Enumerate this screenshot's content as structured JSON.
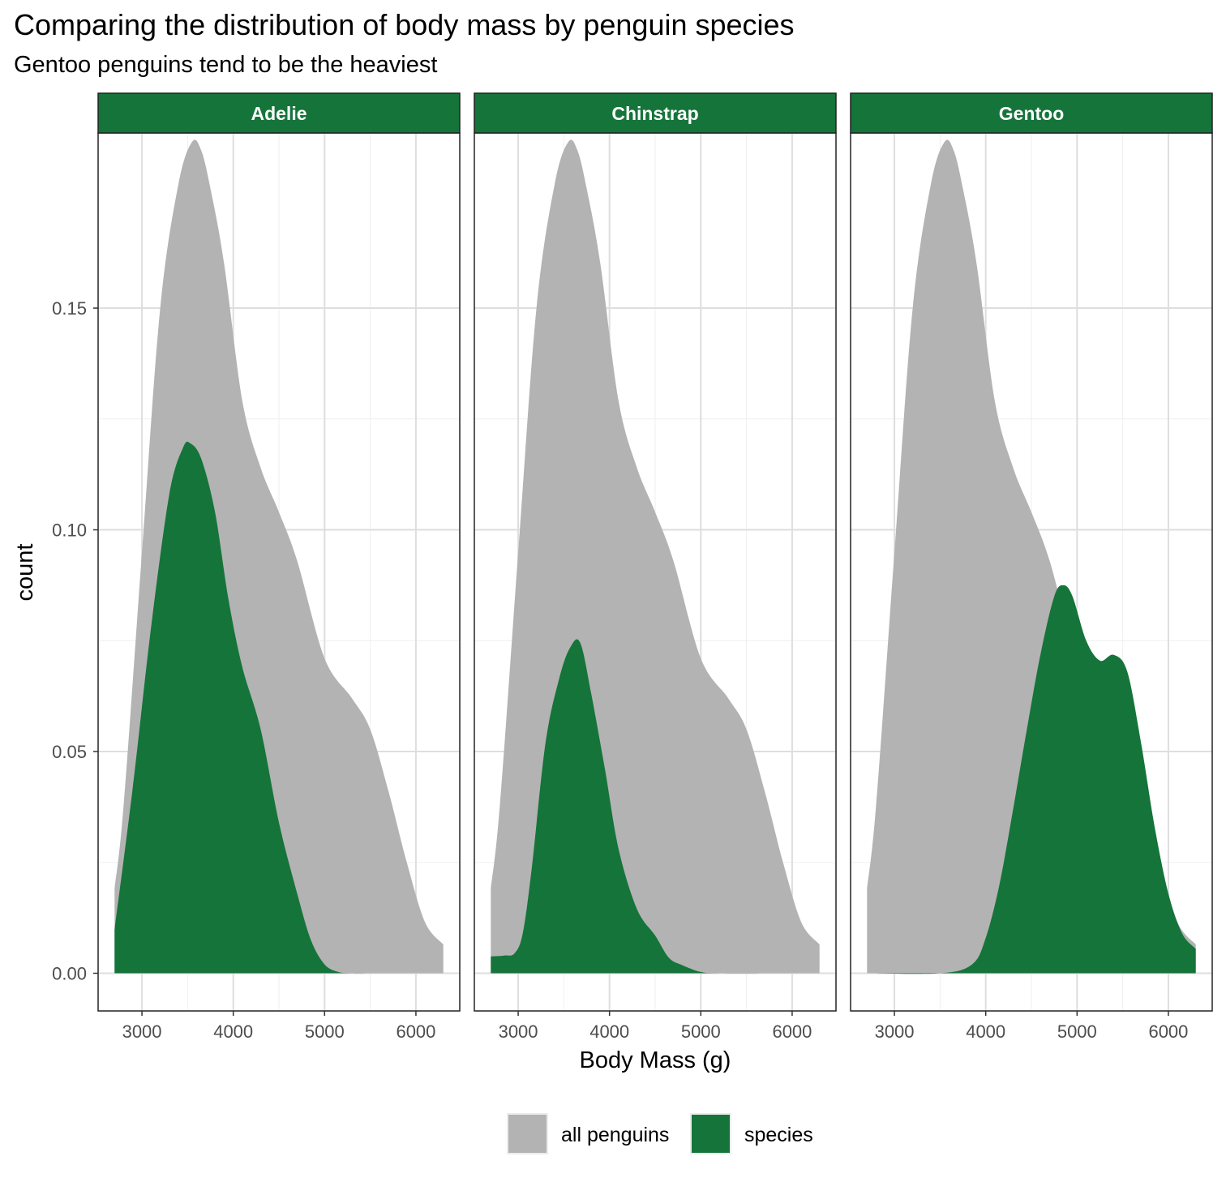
{
  "title": "Comparing the distribution of body mass by penguin species",
  "subtitle": "Gentoo penguins tend to be the heaviest",
  "colors": {
    "all": "#b3b3b3",
    "species": "#15743a",
    "grid": "#dedede",
    "strip_bg": "#15743a",
    "strip_text": "#ffffff"
  },
  "chart_data": {
    "type": "area",
    "facets": [
      "Adelie",
      "Chinstrap",
      "Gentoo"
    ],
    "xlabel": "Body Mass (g)",
    "ylabel": "count",
    "xlim": [
      2520,
      6480
    ],
    "ylim": [
      -0.0085,
      0.1895
    ],
    "x_ticks": [
      3000,
      4000,
      5000,
      6000
    ],
    "y_ticks": [
      0.0,
      0.05,
      0.1,
      0.15
    ],
    "y_tick_labels": [
      "0.00",
      "0.05",
      "0.10",
      "0.15"
    ],
    "grid": true,
    "legend": {
      "position": "bottom",
      "entries": [
        "all penguins",
        "species"
      ]
    },
    "all_penguins": {
      "x": [
        2700,
        2800,
        3000,
        3200,
        3400,
        3550,
        3650,
        3750,
        3900,
        4100,
        4300,
        4500,
        4700,
        5000,
        5300,
        5500,
        5700,
        5900,
        6100,
        6300
      ],
      "y": [
        0.019,
        0.038,
        0.095,
        0.15,
        0.178,
        0.1875,
        0.1855,
        0.177,
        0.16,
        0.129,
        0.114,
        0.104,
        0.093,
        0.071,
        0.062,
        0.055,
        0.041,
        0.025,
        0.0115,
        0.0065
      ]
    },
    "species": {
      "Adelie": {
        "x": [
          2700,
          2900,
          3100,
          3300,
          3450,
          3530,
          3650,
          3800,
          3950,
          4100,
          4300,
          4500,
          4700,
          4850,
          5000,
          5150,
          5300,
          5500,
          5800,
          6300
        ],
        "y": [
          0.0098,
          0.042,
          0.078,
          0.108,
          0.1185,
          0.1195,
          0.116,
          0.104,
          0.084,
          0.069,
          0.055,
          0.034,
          0.018,
          0.0075,
          0.002,
          0.0003,
          0.0,
          0.0,
          0.0,
          0.0
        ]
      },
      "Chinstrap": {
        "x": [
          2700,
          2850,
          2960,
          3050,
          3150,
          3300,
          3450,
          3570,
          3680,
          3800,
          3950,
          4100,
          4300,
          4500,
          4650,
          4800,
          5000,
          5200,
          5800,
          6300
        ],
        "y": [
          0.0038,
          0.004,
          0.0045,
          0.009,
          0.024,
          0.052,
          0.0665,
          0.0735,
          0.0745,
          0.063,
          0.046,
          0.028,
          0.0145,
          0.0085,
          0.0035,
          0.0018,
          0.0003,
          0.0,
          0.0,
          0.0
        ]
      },
      "Gentoo": {
        "x": [
          2700,
          3500,
          3850,
          4000,
          4150,
          4300,
          4450,
          4600,
          4750,
          4850,
          4950,
          5100,
          5250,
          5400,
          5550,
          5700,
          5850,
          6000,
          6150,
          6300
        ],
        "y": [
          0.0,
          0.0,
          0.002,
          0.008,
          0.02,
          0.037,
          0.055,
          0.072,
          0.085,
          0.0875,
          0.085,
          0.075,
          0.0705,
          0.0718,
          0.068,
          0.052,
          0.033,
          0.018,
          0.009,
          0.0055
        ]
      }
    }
  }
}
